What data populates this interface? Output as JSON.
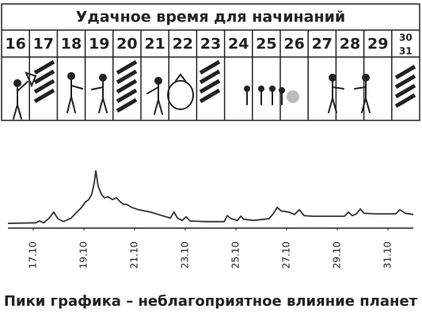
{
  "calendar": {
    "title": "Удачное время для начинаний",
    "days": [
      "16",
      "17",
      "18",
      "19",
      "20",
      "21",
      "22",
      "23",
      "24",
      "25",
      "26",
      "27",
      "28",
      "29",
      "30",
      "31"
    ]
  },
  "chart_data": {
    "type": "line",
    "caption": "Пики графика – неблагоприятное влияние планет",
    "x": [
      16.0,
      17.09,
      17.25,
      17.41,
      17.63,
      17.81,
      17.97,
      18.19,
      18.5,
      18.72,
      18.91,
      19.06,
      19.19,
      19.31,
      19.41,
      19.47,
      19.56,
      19.69,
      19.81,
      19.94,
      20.13,
      20.28,
      20.44,
      20.56,
      20.69,
      20.88,
      21.16,
      21.63,
      22.09,
      22.41,
      22.56,
      22.69,
      22.88,
      23.03,
      23.19,
      23.81,
      24.53,
      24.66,
      24.81,
      25.06,
      25.19,
      25.31,
      25.69,
      26.31,
      26.47,
      26.63,
      26.78,
      27.09,
      27.31,
      27.5,
      27.69,
      28.03,
      29.28,
      29.44,
      29.59,
      29.75,
      29.91,
      30.06,
      30.53,
      31.31,
      31.47,
      31.69,
      32.0
    ],
    "values": [
      4,
      5,
      8,
      5,
      13,
      23,
      12,
      7,
      13,
      23,
      31,
      40,
      44,
      53,
      73,
      93,
      67,
      53,
      47,
      49,
      44,
      47,
      40,
      36,
      36,
      31,
      27,
      23,
      17,
      13,
      23,
      13,
      9,
      15,
      8,
      7,
      7,
      17,
      12,
      9,
      16,
      11,
      9,
      12,
      20,
      31,
      25,
      23,
      19,
      27,
      17,
      16,
      16,
      23,
      17,
      20,
      28,
      21,
      20,
      20,
      27,
      21,
      19
    ],
    "color": "#333333",
    "xlim": [
      16,
      32
    ],
    "ylim": [
      0,
      100
    ],
    "xticks": [
      {
        "value": 17,
        "label": "17.10"
      },
      {
        "value": 19,
        "label": "19.10"
      },
      {
        "value": 21,
        "label": "21.10"
      },
      {
        "value": 23,
        "label": "23.10"
      },
      {
        "value": 25,
        "label": "25.10"
      },
      {
        "value": 27,
        "label": "27.10"
      },
      {
        "value": 29,
        "label": "29.10"
      },
      {
        "value": 31,
        "label": "31.10"
      }
    ],
    "grid": false
  }
}
